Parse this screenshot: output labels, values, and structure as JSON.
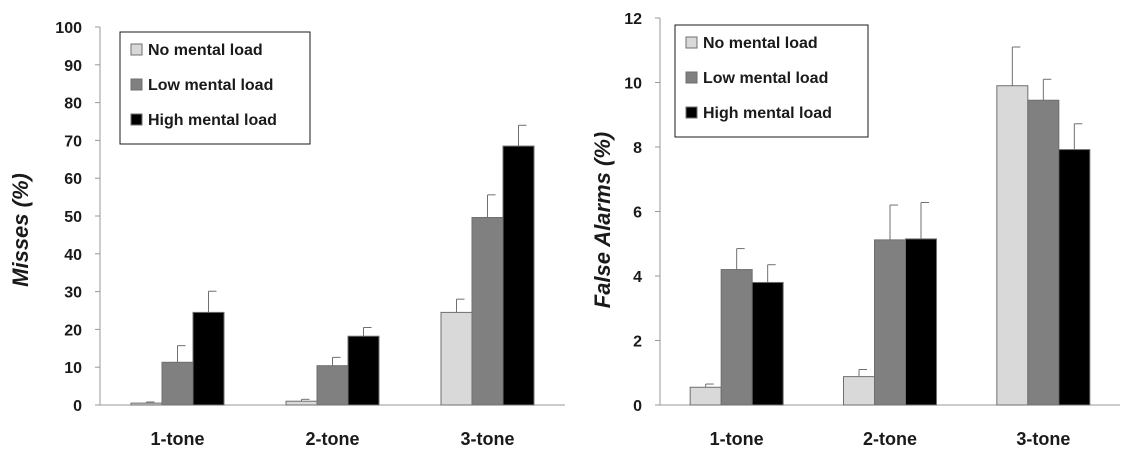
{
  "chart_data": [
    {
      "type": "bar",
      "ylabel": "Misses (%)",
      "categories": [
        "1-tone",
        "2-tone",
        "3-tone"
      ],
      "ylim": [
        0,
        100
      ],
      "yticks": [
        0,
        10,
        20,
        30,
        40,
        50,
        60,
        70,
        80,
        90,
        100
      ],
      "legend_position": "top-left",
      "series": [
        {
          "name": "No mental load",
          "color": "#d9d9d9",
          "values": [
            0.5,
            1.0,
            24.5
          ],
          "errors": [
            0.3,
            0.5,
            3.5
          ]
        },
        {
          "name": "Low mental load",
          "color": "#808080",
          "values": [
            11.3,
            10.4,
            49.6
          ],
          "errors": [
            4.4,
            2.2,
            6.0
          ]
        },
        {
          "name": "High mental load",
          "color": "#000000",
          "values": [
            24.5,
            18.2,
            68.5
          ],
          "errors": [
            5.6,
            2.3,
            5.5
          ]
        }
      ]
    },
    {
      "type": "bar",
      "ylabel": "False Alarms (%)",
      "categories": [
        "1-tone",
        "2-tone",
        "3-tone"
      ],
      "ylim": [
        0,
        12
      ],
      "yticks": [
        0,
        2,
        4,
        6,
        8,
        10,
        12
      ],
      "legend_position": "top-left",
      "series": [
        {
          "name": "No mental load",
          "color": "#d9d9d9",
          "values": [
            0.55,
            0.88,
            9.9
          ],
          "errors": [
            0.1,
            0.22,
            1.2
          ]
        },
        {
          "name": "Low mental load",
          "color": "#808080",
          "values": [
            4.2,
            5.12,
            9.45
          ],
          "errors": [
            0.65,
            1.08,
            0.65
          ]
        },
        {
          "name": "High mental load",
          "color": "#000000",
          "values": [
            3.8,
            5.15,
            7.92
          ],
          "errors": [
            0.55,
            1.13,
            0.8
          ]
        }
      ]
    }
  ]
}
